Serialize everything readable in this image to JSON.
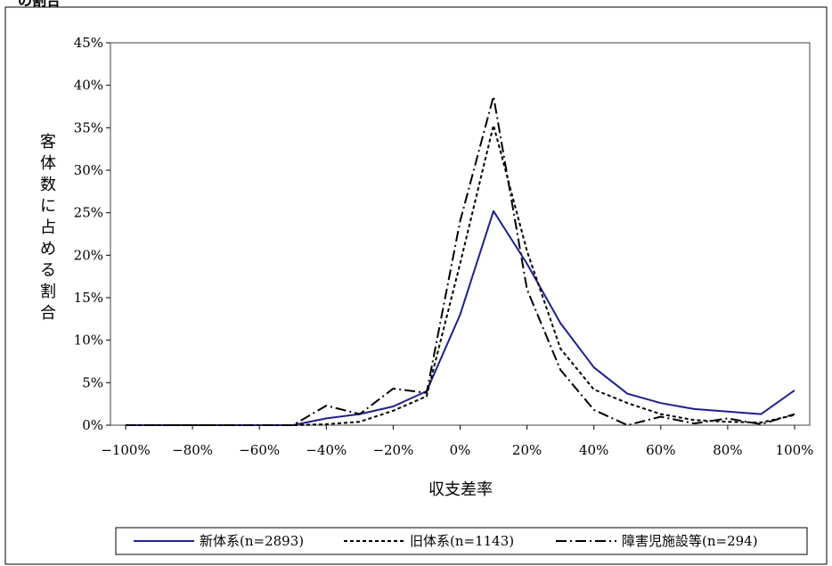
{
  "header": {
    "cut_title": "の割合"
  },
  "chart_data": {
    "type": "line",
    "title": "",
    "xlabel": "収支差率",
    "ylabel": "客体数に占める割合",
    "xlim": [
      -100,
      100
    ],
    "ylim": [
      0,
      45
    ],
    "x_ticks": [
      "−100%",
      "−80%",
      "−60%",
      "−40%",
      "−20%",
      "0%",
      "20%",
      "40%",
      "60%",
      "80%",
      "100%"
    ],
    "y_ticks": [
      "0%",
      "5%",
      "10%",
      "15%",
      "20%",
      "25%",
      "30%",
      "35%",
      "40%",
      "45%"
    ],
    "grid": false,
    "legend_position": "bottom",
    "x": [
      -100,
      -90,
      -80,
      -70,
      -60,
      -50,
      -40,
      -30,
      -20,
      -10,
      0,
      10,
      20,
      30,
      40,
      50,
      60,
      70,
      80,
      90,
      100
    ],
    "series": [
      {
        "name": "新体系(n=2893)",
        "style": "solid",
        "color": "#1f1f8f",
        "values": [
          0,
          0,
          0,
          0,
          0,
          0,
          0.8,
          1.3,
          2.2,
          4.0,
          13.0,
          25.2,
          19.0,
          12.0,
          6.8,
          3.7,
          2.6,
          1.9,
          1.6,
          1.3,
          4.1
        ]
      },
      {
        "name": "旧体系(n=1143)",
        "style": "dashed",
        "color": "#000000",
        "values": [
          0,
          0,
          0,
          0,
          0,
          0,
          0.1,
          0.4,
          1.7,
          3.4,
          19.0,
          35.3,
          20.5,
          9.0,
          4.2,
          2.6,
          1.3,
          0.6,
          0.4,
          0.3,
          1.2
        ]
      },
      {
        "name": "障害児施設等(n=294)",
        "style": "dashdot",
        "color": "#000000",
        "values": [
          0,
          0,
          0,
          0,
          0,
          0,
          2.3,
          1.3,
          4.3,
          3.8,
          24.0,
          38.7,
          16.0,
          6.5,
          1.8,
          0,
          1.0,
          0.2,
          0.8,
          0.1,
          1.3
        ]
      }
    ]
  }
}
